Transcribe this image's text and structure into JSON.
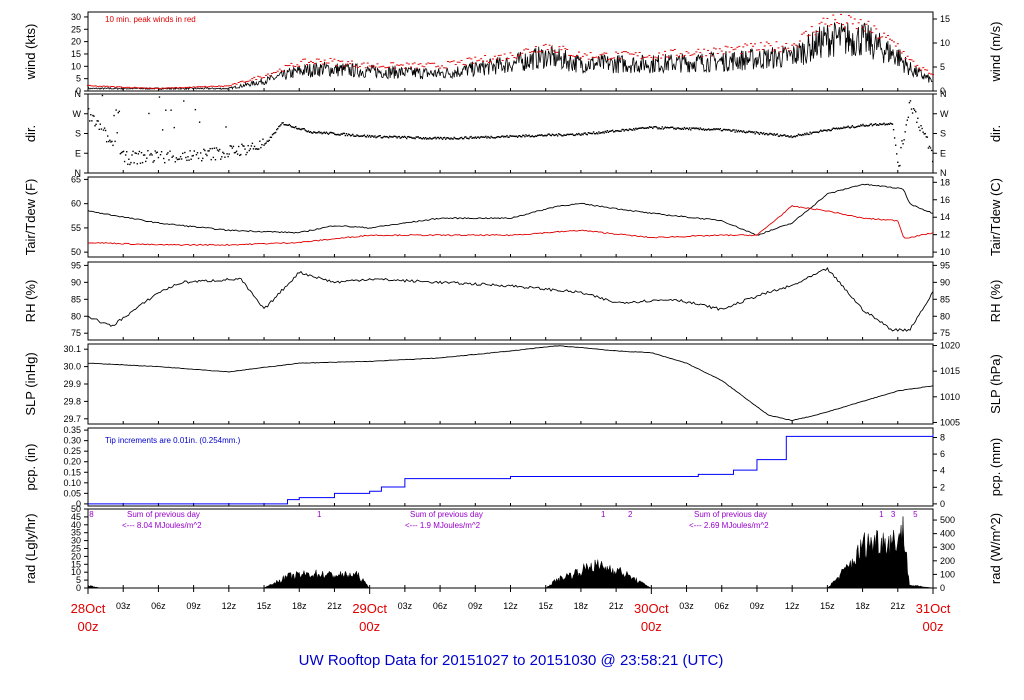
{
  "title": "UW Rooftop Data for 20151027  to  20151030 @ 23:58:21  (UTC)",
  "colors": {
    "frame": "#000000",
    "peak": "#e00000",
    "dew": "#e00000",
    "pcp": "#0000ff",
    "rad_notes": "#9900cc",
    "day": "#e00000",
    "footer": "#0000cc"
  },
  "chart_data": [
    {
      "type": "line",
      "name": "wind",
      "ylabel_left": "wind (kts)",
      "ylabel_right": "wind (m/s)",
      "ylim_left": [
        0,
        32
      ],
      "yticks_left": [
        "0",
        "5",
        "10",
        "15",
        "20",
        "25",
        "30"
      ],
      "ylim_right": [
        0,
        16.46
      ],
      "yticks_right": [
        "0",
        "5",
        "10",
        "15"
      ],
      "annotation": "10 min. peak winds in red",
      "series": [
        {
          "color": "#000000",
          "hours": [
            0,
            6,
            12,
            15,
            18,
            20,
            24,
            30,
            36,
            39,
            42,
            48,
            54,
            60,
            63,
            66,
            69,
            70,
            72
          ],
          "values": [
            1,
            1,
            1,
            4,
            8,
            9,
            8,
            7,
            11,
            14,
            11,
            11,
            12,
            14,
            21,
            21,
            14,
            9,
            4
          ]
        },
        {
          "color": "#e00000",
          "points": "peak",
          "hours": [
            0,
            6,
            12,
            15,
            18,
            20,
            24,
            30,
            36,
            39,
            42,
            48,
            54,
            60,
            63,
            66,
            69,
            70,
            72
          ],
          "values": [
            2,
            1,
            2,
            6,
            11,
            12,
            10,
            10,
            14,
            18,
            14,
            14,
            16,
            18,
            28,
            26,
            18,
            12,
            6
          ]
        }
      ]
    },
    {
      "type": "scatter",
      "name": "direction",
      "ylabel_left": "dir.",
      "ylabel_right": "dir.",
      "yticks_left": [
        "N",
        "E",
        "S",
        "W",
        "N"
      ],
      "yticks_right": [
        "N",
        "E",
        "S",
        "W",
        "N"
      ],
      "ylim": [
        0,
        360
      ],
      "series": [
        {
          "hours": [
            0,
            3,
            6,
            9,
            12,
            15,
            16.5,
            19,
            24,
            30,
            36,
            42,
            48,
            54,
            60,
            63,
            66,
            68.5,
            69,
            70,
            72
          ],
          "values": [
            270,
            70,
            80,
            80,
            100,
            130,
            230,
            190,
            170,
            160,
            170,
            180,
            210,
            200,
            170,
            200,
            220,
            230,
            30,
            330,
            70
          ]
        }
      ]
    },
    {
      "type": "line",
      "name": "temperature",
      "ylabel_left": "Tair/Tdew (F)",
      "ylabel_right": "Tair/Tdew (C)",
      "ylim_left": [
        49,
        65.5
      ],
      "yticks_left": [
        "50",
        "55",
        "60",
        "65"
      ],
      "ylim_right": [
        9.44,
        18.61
      ],
      "yticks_right": [
        "10",
        "12",
        "14",
        "16",
        "18"
      ],
      "series": [
        {
          "name": "Tair",
          "color": "#000000",
          "hours": [
            0,
            6,
            12,
            18,
            21,
            24,
            30,
            36,
            40,
            42,
            48,
            54,
            57,
            60,
            63,
            66,
            68,
            69.5,
            70,
            72
          ],
          "values": [
            58.5,
            56,
            54.5,
            54,
            55.5,
            55,
            57,
            57,
            59.5,
            60,
            58,
            56.5,
            53.5,
            56,
            62,
            64,
            63.5,
            63,
            60,
            58
          ]
        },
        {
          "name": "Tdew",
          "color": "#e00000",
          "hours": [
            0,
            6,
            12,
            18,
            24,
            30,
            36,
            42,
            48,
            54,
            57,
            60,
            63,
            66,
            69,
            69.5,
            70,
            72
          ],
          "values": [
            52,
            51.5,
            51.5,
            52,
            53.5,
            53.5,
            53.5,
            54.5,
            53,
            53.5,
            53.5,
            59.5,
            58.5,
            57,
            56.5,
            53,
            53,
            54
          ]
        }
      ]
    },
    {
      "type": "line",
      "name": "humidity",
      "ylabel_left": "RH (%)",
      "ylabel_right": "RH (%)",
      "ylim": [
        73,
        96
      ],
      "yticks": [
        "75",
        "80",
        "85",
        "90",
        "95"
      ],
      "series": [
        {
          "hours": [
            0,
            2,
            6,
            8,
            13,
            15,
            18,
            21,
            24,
            30,
            36,
            42,
            45,
            50,
            54,
            57,
            60,
            63,
            66,
            68.5,
            70,
            72
          ],
          "values": [
            80,
            77,
            87,
            90,
            91,
            82,
            93,
            90,
            91,
            90,
            89,
            87,
            84,
            85,
            82,
            86,
            89,
            94,
            82,
            76,
            76,
            87
          ]
        }
      ]
    },
    {
      "type": "line",
      "name": "pressure",
      "ylabel_left": "SLP (inHg)",
      "ylabel_right": "SLP (hPa)",
      "ylim_left": [
        29.67,
        30.13
      ],
      "yticks_left": [
        "29.7",
        "29.8",
        "29.9",
        "30.0",
        "30.1"
      ],
      "ylim_right": [
        1004.7,
        1020.3
      ],
      "yticks_right": [
        "1005",
        "1010",
        "1015",
        "1020"
      ],
      "series": [
        {
          "hours": [
            0,
            6,
            12,
            18,
            24,
            30,
            36,
            40,
            42,
            45,
            48,
            51,
            54,
            56,
            58,
            60,
            62,
            63,
            66,
            69,
            72
          ],
          "values": [
            30.02,
            30.0,
            29.97,
            30.02,
            30.03,
            30.05,
            30.09,
            30.12,
            30.11,
            30.09,
            30.08,
            30.02,
            29.92,
            29.82,
            29.72,
            29.69,
            29.72,
            29.74,
            29.8,
            29.86,
            29.89
          ]
        }
      ]
    },
    {
      "type": "line",
      "name": "precipitation",
      "ylabel_left": "pcp. (in)",
      "ylabel_right": "pcp. (mm)",
      "ylim_left": [
        -0.01,
        0.36
      ],
      "yticks_left": [
        "0",
        "0.05",
        "0.10",
        "0.15",
        "0.20",
        "0.25",
        "0.30",
        "0.35"
      ],
      "ylim_right": [
        -0.254,
        9.144
      ],
      "yticks_right": [
        "0",
        "2",
        "4",
        "6",
        "8"
      ],
      "annotation": "Tip increments are 0.01in. (0.254mm.)",
      "series": [
        {
          "color": "#0000ff",
          "hours": [
            0,
            15,
            17,
            18,
            21,
            24,
            25,
            27,
            36,
            48,
            52,
            55,
            57,
            59.5,
            72
          ],
          "values": [
            0,
            0,
            0.02,
            0.03,
            0.05,
            0.06,
            0.08,
            0.12,
            0.13,
            0.13,
            0.14,
            0.16,
            0.21,
            0.32,
            0.33
          ]
        }
      ]
    },
    {
      "type": "area",
      "name": "radiation",
      "ylabel_left": "rad (Lgly/hr)",
      "ylabel_right": "rad (W/m^2)",
      "ylim_left": [
        0,
        50
      ],
      "yticks_left": [
        "0",
        "5",
        "10",
        "15",
        "20",
        "25",
        "30",
        "35",
        "40",
        "45",
        "50"
      ],
      "ylim_right": [
        0,
        581.3
      ],
      "yticks_right": [
        "0",
        "100",
        "200",
        "300",
        "400",
        "500"
      ],
      "series": [
        {
          "color": "#000000",
          "hours": [
            0,
            1,
            15,
            17,
            19,
            21,
            23,
            24,
            39,
            40,
            42,
            43,
            45,
            48,
            63,
            64,
            65.5,
            66,
            67.5,
            68.5,
            69.5,
            70,
            72
          ],
          "values": [
            2,
            0,
            0,
            8,
            10,
            9,
            9,
            0,
            0,
            6,
            12,
            16,
            13,
            0,
            0,
            8,
            22,
            30,
            34,
            32,
            40,
            2,
            0
          ]
        }
      ],
      "notes": [
        {
          "text": "Sum of previous day",
          "line2": "<--- 8.04 MJoules/m^2"
        },
        {
          "text": "Sum of previous day",
          "line2": "<--- 1.9 MJoules/m^2"
        },
        {
          "text": "Sum of previous day",
          "line2": "<--- 2.69 MJoules/m^2"
        }
      ],
      "top_marks": [
        "8",
        "1",
        "1",
        "2",
        "1",
        "3",
        "5"
      ],
      "top_marks_hours": [
        0.3,
        19.7,
        43.9,
        46.2,
        67.6,
        68.6,
        70.5
      ]
    }
  ],
  "x_axis": {
    "hour_ticks": [
      "03z",
      "06z",
      "09z",
      "12z",
      "15z",
      "18z",
      "21z",
      "03z",
      "06z",
      "09z",
      "12z",
      "15z",
      "18z",
      "21z",
      "03z",
      "06z",
      "09z",
      "12z",
      "15z",
      "18z",
      "21z"
    ],
    "hour_tick_hours": [
      3,
      6,
      9,
      12,
      15,
      18,
      21,
      27,
      30,
      33,
      36,
      39,
      42,
      45,
      51,
      54,
      57,
      60,
      63,
      66,
      69
    ],
    "day_labels": [
      {
        "date": "28Oct",
        "time": "00z"
      },
      {
        "date": "29Oct",
        "time": "00z"
      },
      {
        "date": "30Oct",
        "time": "00z"
      },
      {
        "date": "31Oct",
        "time": "00z"
      }
    ],
    "day_label_hours": [
      0,
      24,
      48,
      72
    ]
  }
}
